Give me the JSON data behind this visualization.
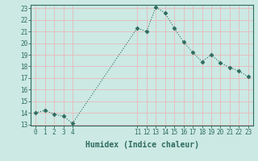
{
  "x": [
    0,
    1,
    2,
    3,
    4,
    11,
    12,
    13,
    14,
    15,
    16,
    17,
    18,
    19,
    20,
    21,
    22,
    23
  ],
  "y": [
    14.0,
    14.2,
    13.9,
    13.7,
    13.1,
    21.3,
    21.0,
    23.1,
    22.6,
    21.3,
    20.1,
    19.2,
    18.4,
    19.0,
    18.3,
    17.9,
    17.6,
    17.1
  ],
  "line_color": "#2e6b5e",
  "marker": "D",
  "marker_size": 2.5,
  "bg_color": "#cce9e4",
  "grid_color": "#e8b8b8",
  "xlabel": "Humidex (Indice chaleur)",
  "ylim": [
    13,
    23
  ],
  "xlim": [
    -0.5,
    23.5
  ],
  "yticks": [
    13,
    14,
    15,
    16,
    17,
    18,
    19,
    20,
    21,
    22,
    23
  ],
  "xticks": [
    0,
    1,
    2,
    3,
    4,
    11,
    12,
    13,
    14,
    15,
    16,
    17,
    18,
    19,
    20,
    21,
    22,
    23
  ],
  "tick_label_fontsize": 5.5,
  "xlabel_fontsize": 7,
  "label_color": "#2e6b5e",
  "spine_color": "#2e6b5e"
}
